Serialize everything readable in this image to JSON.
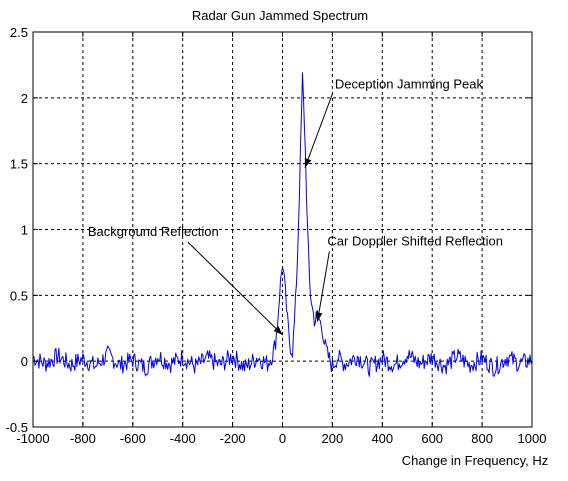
{
  "chart_data": {
    "type": "line",
    "title": "Radar Gun Jammed Spectrum",
    "xlabel": "Change in Frequency, Hz",
    "ylabel": "",
    "xlim": [
      -1000,
      1000
    ],
    "ylim": [
      -0.5,
      2.5
    ],
    "x_ticks": [
      -1000,
      -800,
      -600,
      -400,
      -200,
      0,
      200,
      400,
      600,
      800,
      1000
    ],
    "x_tick_labels": [
      "-1000",
      "-800",
      "-600",
      "-400",
      "-200",
      "0",
      "200",
      "400",
      "600",
      "800",
      "1000"
    ],
    "y_ticks": [
      -0.5,
      0,
      0.5,
      1,
      1.5,
      2,
      2.5
    ],
    "y_tick_labels": [
      "-0.5",
      "0",
      "0.5",
      "1",
      "1.5",
      "2",
      "2.5"
    ],
    "grid": true,
    "line_color": "#0000ff",
    "series": [
      {
        "x": [
          -1000,
          -950,
          -900,
          -850,
          -800,
          -750,
          -700,
          -650,
          -600,
          -550,
          -500,
          -450,
          -400,
          -350,
          -300,
          -250,
          -200,
          -150,
          -100,
          -60,
          -40,
          -30,
          -20,
          -10,
          0,
          10,
          20,
          30,
          40,
          50,
          60,
          70,
          80,
          90,
          100,
          110,
          120,
          130,
          140,
          150,
          160,
          170,
          180,
          200,
          220,
          250,
          300,
          350,
          400,
          450,
          500,
          550,
          600,
          650,
          700,
          750,
          800,
          850,
          900,
          950,
          1000
        ],
        "y": [
          0.03,
          -0.02,
          0.04,
          -0.03,
          0.02,
          -0.04,
          0.05,
          -0.03,
          0.01,
          -0.05,
          0.04,
          -0.02,
          0.03,
          -0.04,
          0.02,
          -0.03,
          0.04,
          -0.05,
          0.03,
          -0.02,
          0.05,
          0.12,
          0.3,
          0.55,
          0.75,
          0.55,
          0.3,
          0.12,
          0.08,
          0.35,
          0.8,
          1.45,
          2.15,
          1.7,
          1.0,
          0.55,
          0.4,
          0.3,
          0.35,
          0.3,
          0.25,
          0.12,
          0.05,
          -0.04,
          0.03,
          -0.02,
          0.04,
          -0.05,
          0.02,
          -0.03,
          0.05,
          -0.02,
          0.03,
          -0.04,
          0.04,
          -0.03,
          0.02,
          -0.05,
          0.03,
          -0.02,
          0.01
        ]
      }
    ],
    "annotations": [
      {
        "text": "Deception Jamming Peak",
        "text_x": 210,
        "text_y": 2.07,
        "arrow_to_x": 90,
        "arrow_to_y": 1.47
      },
      {
        "text": "Background Reflection",
        "text_x": -780,
        "text_y": 0.95,
        "arrow_to_x": 0,
        "arrow_to_y": 0.2
      },
      {
        "text": "Car Doppler Shifted Reflection",
        "text_x": 180,
        "text_y": 0.88,
        "arrow_to_x": 140,
        "arrow_to_y": 0.3
      }
    ]
  }
}
